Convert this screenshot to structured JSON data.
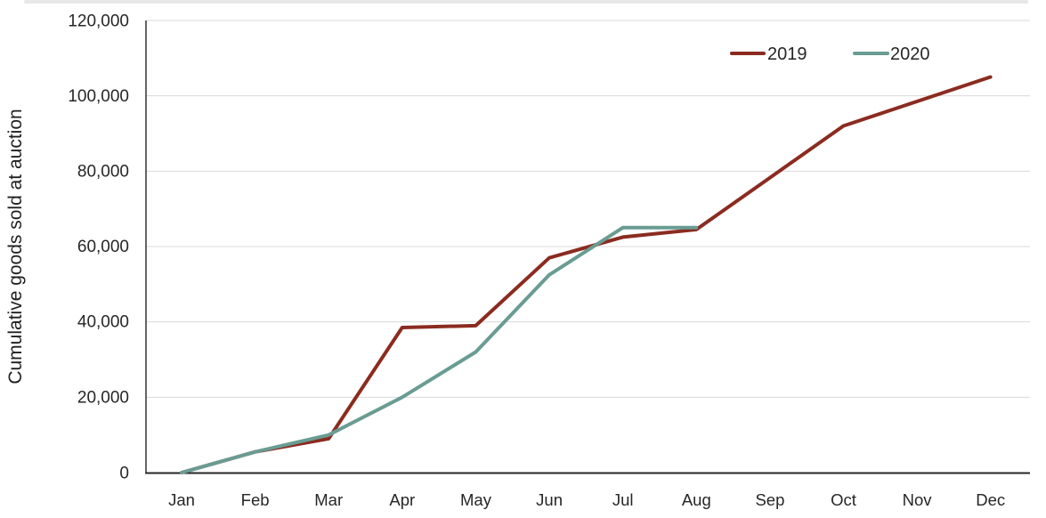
{
  "page": {
    "background_color": "#ffffff",
    "top_strip_color": "#e7e7e7"
  },
  "chart_data": {
    "type": "line",
    "title": "",
    "xlabel": "",
    "ylabel": "Cumulative goods sold at auction",
    "ylim": [
      0,
      120000
    ],
    "y_tick_step": 20000,
    "grid": "horizontal",
    "gridline_color": "#d9d9d9",
    "axis_color": "#3f3f3f",
    "legend_position": "top-right-inside",
    "categories": [
      "Jan",
      "Feb",
      "Mar",
      "Apr",
      "May",
      "Jun",
      "Jul",
      "Aug",
      "Sep",
      "Oct",
      "Nov",
      "Dec"
    ],
    "y_ticks": [
      "120,000",
      "100,000",
      "80,000",
      "60,000",
      "40,000",
      "20,000",
      "0"
    ],
    "series": [
      {
        "name": "2019",
        "color": "#8B2B20",
        "values": [
          0,
          5500,
          9000,
          38500,
          39000,
          57000,
          62500,
          64500,
          78250,
          92000,
          98500,
          105000
        ]
      },
      {
        "name": "2020",
        "color": "#699C93",
        "values": [
          0,
          5500,
          10000,
          20000,
          32000,
          52500,
          65000,
          65000
        ]
      }
    ]
  }
}
